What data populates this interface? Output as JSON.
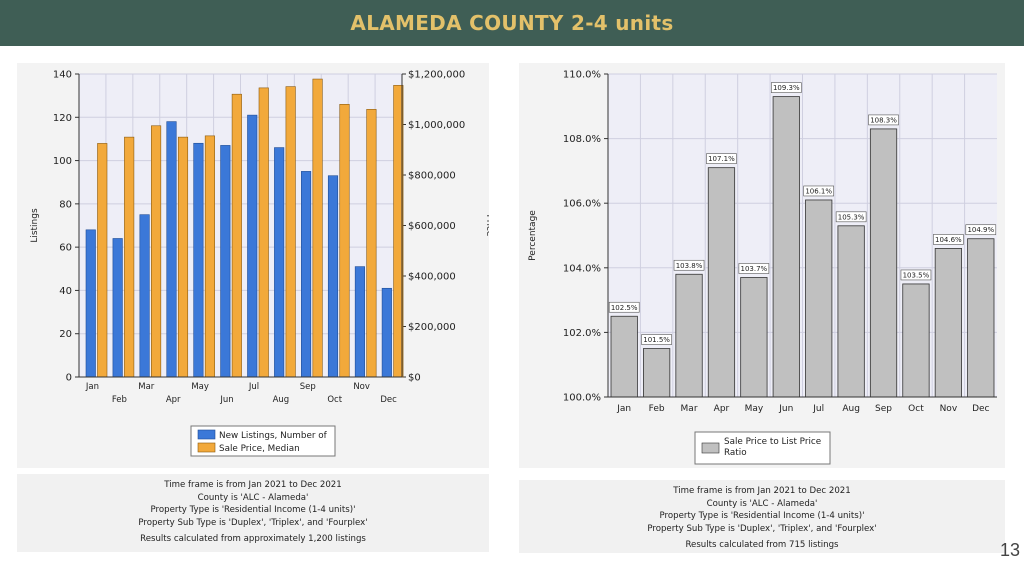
{
  "page": {
    "title": "ALAMEDA COUNTY 2-4 units",
    "page_number": "13"
  },
  "colors": {
    "header_bg": "#3f5e55",
    "title": "#e3c16a",
    "listings": "#3b78d8",
    "price": "#f2a93b",
    "ratio": "#c0c0c0",
    "plot_bg": "#eeeef7"
  },
  "chart_data": [
    {
      "type": "bar",
      "categories": [
        "Jan",
        "Feb",
        "Mar",
        "Apr",
        "May",
        "Jun",
        "Jul",
        "Aug",
        "Sep",
        "Oct",
        "Nov",
        "Dec"
      ],
      "series": [
        {
          "name": "New Listings, Number of",
          "axis": "left",
          "color": "#3b78d8",
          "values": [
            68,
            64,
            75,
            118,
            108,
            107,
            121,
            106,
            95,
            93,
            51,
            41
          ]
        },
        {
          "name": "Sale Price, Median",
          "axis": "right",
          "color": "#f2a93b",
          "values": [
            925000,
            950000,
            995000,
            950000,
            955000,
            1120000,
            1145000,
            1150000,
            1180000,
            1080000,
            1060000,
            1155000
          ]
        }
      ],
      "ylabel": "Listings",
      "y2label": "Price",
      "ylim": [
        0,
        140
      ],
      "y2lim": [
        0,
        1200000
      ],
      "yticks": [
        0,
        20,
        40,
        60,
        80,
        100,
        120,
        140
      ],
      "y2ticks": [
        "$0",
        "$200,000",
        "$400,000",
        "$600,000",
        "$800,000",
        "$1,000,000",
        "$1,200,000"
      ],
      "grid": true,
      "legend": "bottom-center"
    },
    {
      "type": "bar",
      "categories": [
        "Jan",
        "Feb",
        "Mar",
        "Apr",
        "May",
        "Jun",
        "Jul",
        "Aug",
        "Sep",
        "Oct",
        "Nov",
        "Dec"
      ],
      "series": [
        {
          "name": "Sale Price to List Price Ratio",
          "color": "#c0c0c0",
          "values": [
            102.5,
            101.5,
            103.8,
            107.1,
            103.7,
            109.3,
            106.1,
            105.3,
            108.3,
            103.5,
            104.6,
            104.9
          ]
        }
      ],
      "data_labels": [
        "102.5%",
        "101.5%",
        "103.8%",
        "107.1%",
        "103.7%",
        "109.3%",
        "106.1%",
        "105.3%",
        "108.3%",
        "103.5%",
        "104.6%",
        "104.9%"
      ],
      "ylabel": "Percentage",
      "ylim": [
        100,
        110
      ],
      "yticks": [
        "100.0%",
        "102.0%",
        "104.0%",
        "106.0%",
        "108.0%",
        "110.0%"
      ],
      "grid": true,
      "legend": "bottom-center"
    }
  ],
  "left_info": [
    "Time frame is from Jan 2021 to Dec 2021",
    "County is 'ALC - Alameda'",
    "Property Type is 'Residential Income (1-4 units)'",
    "Property Sub Type is 'Duplex', 'Triplex', and 'Fourplex'",
    "Results calculated from approximately 1,200 listings"
  ],
  "right_info": [
    "Time frame is from Jan 2021 to Dec 2021",
    "County is 'ALC - Alameda'",
    "Property Type is 'Residential Income (1-4 units)'",
    "Property Sub Type is 'Duplex', 'Triplex', and 'Fourplex'",
    "Results calculated from 715 listings"
  ]
}
